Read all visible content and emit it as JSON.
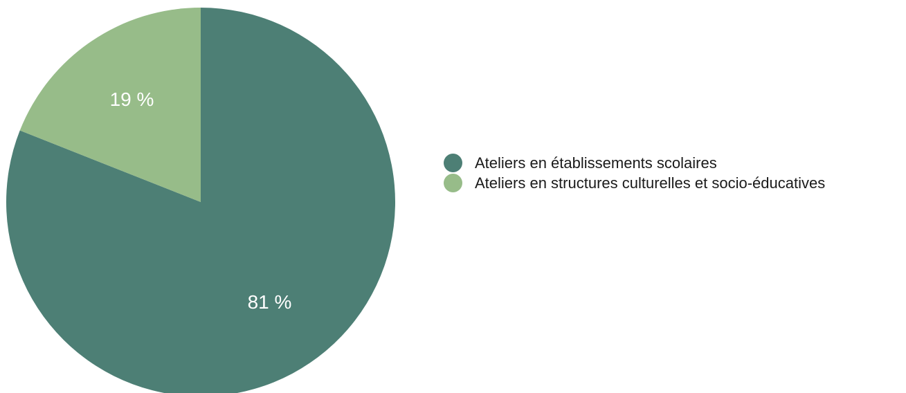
{
  "chart_data": {
    "type": "pie",
    "title": "",
    "legend_position": "right",
    "slices": [
      {
        "label": "Ateliers en établissements scolaires",
        "value": 81,
        "value_label": "81 %",
        "color": "#4d7f75"
      },
      {
        "label": "Ateliers en structures culturelles et socio-éducatives",
        "value": 19,
        "value_label": "19 %",
        "color": "#97bc89"
      }
    ]
  }
}
